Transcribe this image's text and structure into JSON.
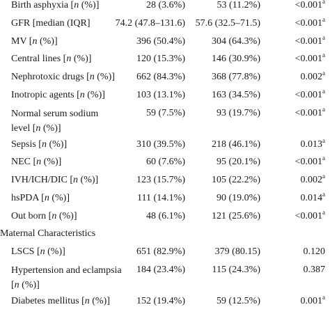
{
  "rows": [
    {
      "label": "Birth asphyxia [n (%)]",
      "c1": "28 (3.6%)",
      "c2": "53 (11.2%)",
      "p": "<0.001",
      "sup": "a"
    },
    {
      "label": "GFR [median (IQR]",
      "c1": "74.2 (47.8–131.6)",
      "c2": "57.6 (32.5–71.5)",
      "p": "<0.001",
      "sup": "a"
    },
    {
      "label": "MV [n (%)]",
      "c1": "396 (50.4%)",
      "c2": "304 (64.3%)",
      "p": "<0.001",
      "sup": "a"
    },
    {
      "label": "Central lines [n (%)]",
      "c1": "120 (15.3%)",
      "c2": "146 (30.9%)",
      "p": "<0.001",
      "sup": "a"
    },
    {
      "label": "Nephrotoxic drugs [n (%)]",
      "c1": "662 (84.3%)",
      "c2": "368 (77.8%)",
      "p": "0.002",
      "sup": "a"
    },
    {
      "label": "Inotropic agents [n (%)]",
      "c1": "103 (13.1%)",
      "c2": "163 (34.5%)",
      "p": "<0.001",
      "sup": "a"
    },
    {
      "label_line1": "Normal serum sodium",
      "label_line2": "level [n (%)]",
      "c1": "59 (7.5%)",
      "c2": "93 (19.7%)",
      "p": "<0.001",
      "sup": "a"
    },
    {
      "label": "Sepsis [n (%)]",
      "c1": "310 (39.5%)",
      "c2": "218 (46.1%)",
      "p": "0.013",
      "sup": "a"
    },
    {
      "label": "NEC [n (%)]",
      "c1": "60 (7.6%)",
      "c2": "95 (20.1%)",
      "p": "<0.001",
      "sup": "a"
    },
    {
      "label": "IVH/ICH/DIC [n (%)]",
      "c1": "123 (15.7%)",
      "c2": "105 (22.2%)",
      "p": "0.002",
      "sup": "a"
    },
    {
      "label": "hsPDA [n (%)]",
      "c1": "111 (14.1%)",
      "c2": "90 (19.0%)",
      "p": "0.014",
      "sup": "a"
    },
    {
      "label": "Out born [n (%)]",
      "c1": "48 (6.1%)",
      "c2": "121 (25.6%)",
      "p": "<0.001",
      "sup": "a"
    }
  ],
  "section_title": "Maternal Characteristics",
  "maternal_rows": [
    {
      "label": "LSCS [n (%)]",
      "c1": "651 (82.9%)",
      "c2": "379 (80.15)",
      "p": "0.120",
      "sup": ""
    },
    {
      "label_line1": "Hypertension and eclampsia",
      "label_line2": "[n (%)]",
      "c1": "184 (23.4%)",
      "c2": "115 (24.3%)",
      "p": "0.387",
      "sup": ""
    },
    {
      "label": "Diabetes mellitus [n (%)]",
      "c1": "152 (19.4%)",
      "c2": "59 (12.5%)",
      "p": "0.001",
      "sup": "a"
    }
  ]
}
